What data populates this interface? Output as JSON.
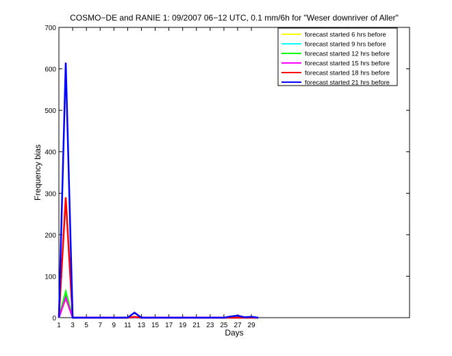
{
  "chart_data": {
    "type": "line",
    "title": "COSMO−DE and RANIE 1: 09/2007 06−12 UTC, 0.1 mm/6h for \"Weser downriver of Aller\"",
    "xlabel": "Days",
    "ylabel": "Frequency bias",
    "xlim": [
      1,
      52
    ],
    "ylim": [
      0,
      700
    ],
    "xticks": [
      1,
      3,
      5,
      7,
      9,
      11,
      13,
      15,
      17,
      19,
      21,
      23,
      25,
      27,
      29
    ],
    "yticks": [
      0,
      100,
      200,
      300,
      400,
      500,
      600,
      700
    ],
    "grid": false,
    "legend_position": "top-right",
    "series": [
      {
        "name": "forecast started 6 hrs before",
        "color": "#ffff00",
        "x": [
          1,
          2,
          3,
          4,
          5,
          6,
          7,
          8,
          9,
          10,
          11,
          12,
          13,
          14,
          15,
          16,
          17,
          18,
          19,
          20,
          21,
          22,
          23,
          24,
          25,
          26,
          27,
          28,
          29,
          30
        ],
        "y": [
          0,
          45,
          0,
          0,
          0,
          0,
          0,
          0,
          0,
          0,
          0,
          0,
          0,
          0,
          0,
          0,
          0,
          0,
          0,
          0,
          0,
          0,
          0,
          0,
          0,
          0,
          0,
          0,
          0,
          0
        ]
      },
      {
        "name": "forecast started 9 hrs before",
        "color": "#00ffff",
        "x": [
          1,
          2,
          3,
          4,
          5,
          6,
          7,
          8,
          9,
          10,
          11,
          12,
          13,
          14,
          15,
          16,
          17,
          18,
          19,
          20,
          21,
          22,
          23,
          24,
          25,
          26,
          27,
          28,
          29,
          30
        ],
        "y": [
          0,
          50,
          0,
          0,
          0,
          0,
          0,
          0,
          0,
          0,
          0,
          0,
          0,
          0,
          0,
          0,
          0,
          0,
          0,
          0,
          0,
          0,
          0,
          0,
          0,
          0,
          0,
          0,
          0,
          0
        ]
      },
      {
        "name": "forecast started 12 hrs before",
        "color": "#00ff00",
        "x": [
          1,
          2,
          3,
          4,
          5,
          6,
          7,
          8,
          9,
          10,
          11,
          12,
          13,
          14,
          15,
          16,
          17,
          18,
          19,
          20,
          21,
          22,
          23,
          24,
          25,
          26,
          27,
          28,
          29,
          30
        ],
        "y": [
          0,
          62,
          0,
          0,
          0,
          0,
          0,
          0,
          0,
          0,
          0,
          1,
          0,
          0,
          0,
          0,
          0,
          0,
          0,
          0,
          0,
          0,
          0,
          0,
          0,
          0,
          0,
          0,
          0,
          0
        ]
      },
      {
        "name": "forecast started 15 hrs before",
        "color": "#ff00ff",
        "x": [
          1,
          2,
          3,
          4,
          5,
          6,
          7,
          8,
          9,
          10,
          11,
          12,
          13,
          14,
          15,
          16,
          17,
          18,
          19,
          20,
          21,
          22,
          23,
          24,
          25,
          26,
          27,
          28,
          29,
          30
        ],
        "y": [
          0,
          48,
          0,
          0,
          0,
          0,
          0,
          0,
          0,
          0,
          0,
          1,
          0,
          0,
          0,
          0,
          0,
          0,
          0,
          0,
          0,
          0,
          0,
          0,
          0,
          0,
          0,
          0,
          0,
          0
        ]
      },
      {
        "name": "forecast started 18 hrs before",
        "color": "#ff0000",
        "x": [
          1,
          2,
          3,
          4,
          5,
          6,
          7,
          8,
          9,
          10,
          11,
          12,
          13,
          14,
          15,
          16,
          17,
          18,
          19,
          20,
          21,
          22,
          23,
          24,
          25,
          26,
          27,
          28,
          29,
          30
        ],
        "y": [
          0,
          290,
          0,
          0,
          0,
          0,
          0,
          0,
          0,
          0,
          0,
          2,
          0,
          0,
          0,
          0,
          0,
          0,
          0,
          0,
          0,
          0,
          0,
          0,
          0,
          0,
          0,
          0,
          0,
          0
        ]
      },
      {
        "name": "forecast started 21 hrs before",
        "color": "#0000ff",
        "x": [
          1,
          2,
          3,
          4,
          5,
          6,
          7,
          8,
          9,
          10,
          11,
          12,
          13,
          14,
          15,
          16,
          17,
          18,
          19,
          20,
          21,
          22,
          23,
          24,
          25,
          26,
          27,
          28,
          29,
          30
        ],
        "y": [
          0,
          615,
          0,
          0,
          0,
          0,
          0,
          0,
          0,
          0,
          0,
          12,
          0,
          0,
          0,
          0,
          0,
          0,
          0,
          0,
          0,
          0,
          0,
          0,
          0,
          3,
          5,
          1,
          2,
          0
        ]
      }
    ]
  }
}
